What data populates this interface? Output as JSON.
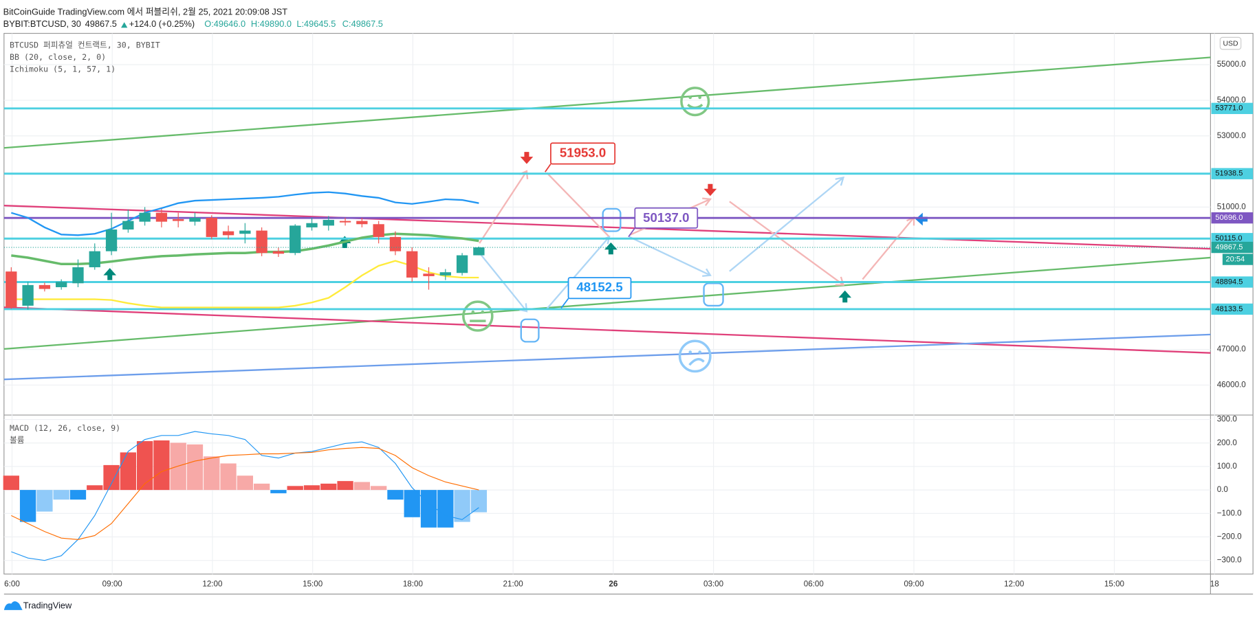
{
  "header": {
    "publish_line": "BitCoinGuide TradingView.com 에서 퍼블리쉬, 2월 25, 2021 20:09:08 JST",
    "symbol": "BYBIT:BTCUSD, 30",
    "price": "49867.5",
    "change": "+124.0 (+0.25%)",
    "open": "O:49646.0",
    "high": "H:49890.0",
    "low": "L:49645.5",
    "close": "C:49867.5"
  },
  "currency_button": "USD",
  "brand": "TradingView",
  "annotations": [
    "51953.0",
    "50137.0",
    "48152.5"
  ],
  "chart_data": [
    {
      "type": "candlestick",
      "title": "BTCUSD 퍼피츄얼 컨트랙트, 30, BYBIT",
      "indicator_labels": [
        "BB (20, close, 2, 0)",
        "Ichimoku (5, 1, 57, 1)"
      ],
      "open": [
        49190,
        48230,
        48810,
        48750,
        48860,
        49310,
        49760,
        50370,
        50590,
        50840,
        50660,
        50590,
        50700,
        50320,
        50250,
        50340,
        49760,
        49710,
        50430,
        50480,
        50610,
        50610,
        50520,
        50160,
        49760,
        49130,
        49080,
        49150,
        49646
      ],
      "high": [
        49310,
        48900,
        48880,
        48970,
        49530,
        49980,
        50840,
        50930,
        51000,
        50950,
        50840,
        50840,
        50770,
        50480,
        50550,
        50430,
        49870,
        50520,
        50700,
        50750,
        50700,
        50700,
        50610,
        50320,
        49870,
        49310,
        49260,
        49710,
        49890
      ],
      "low": [
        48140,
        48120,
        48630,
        48680,
        48750,
        49240,
        49650,
        50280,
        50480,
        50430,
        50430,
        50480,
        50100,
        50100,
        49980,
        49620,
        49600,
        49650,
        50340,
        50340,
        50480,
        50430,
        49980,
        49650,
        48900,
        48680,
        48950,
        49080,
        49645.5
      ],
      "close": [
        48180,
        48810,
        48700,
        48900,
        49310,
        49760,
        50370,
        50610,
        50840,
        50590,
        50610,
        50700,
        50160,
        50210,
        50340,
        49710,
        49690,
        50480,
        50550,
        50640,
        50570,
        50520,
        50160,
        49760,
        49020,
        49060,
        49170,
        49646,
        49867.5
      ],
      "up_color": "#26a69a",
      "down_color": "#ef5350",
      "lines": [
        {
          "color": "#2196f3",
          "values": [
            50840,
            50700,
            50430,
            50230,
            50210,
            50250,
            50390,
            50610,
            50840,
            50970,
            51110,
            51180,
            51200,
            51220,
            51240,
            51260,
            51290,
            51350,
            51400,
            51420,
            51380,
            51310,
            51260,
            51130,
            51090,
            51150,
            51220,
            51200,
            51110
          ]
        },
        {
          "color": "#66bb6a",
          "values": [
            49640,
            49580,
            49490,
            49400,
            49400,
            49420,
            49470,
            49530,
            49580,
            49620,
            49640,
            49670,
            49690,
            49710,
            49710,
            49740,
            49740,
            49760,
            49830,
            49920,
            50030,
            50140,
            50210,
            50250,
            50230,
            50210,
            50160,
            50120,
            50050
          ]
        },
        {
          "color": "#ffeb3b",
          "values": [
            48410,
            48410,
            48410,
            48410,
            48410,
            48410,
            48390,
            48300,
            48230,
            48180,
            48180,
            48180,
            48180,
            48180,
            48180,
            48180,
            48180,
            48230,
            48320,
            48450,
            48750,
            49080,
            49350,
            49490,
            49350,
            49170,
            49060,
            49020,
            49020
          ]
        }
      ],
      "levels": [
        {
          "value": 53771.0,
          "label": "53771.0",
          "color": "#4dd0e1"
        },
        {
          "value": 51938.5,
          "label": "51938.5",
          "color": "#4dd0e1"
        },
        {
          "value": 50696.0,
          "label": "50696.0",
          "color": "#7e57c2"
        },
        {
          "value": 50115.0,
          "label": "50115.0",
          "color": "#4dd0e1"
        },
        {
          "value": 48894.5,
          "label": "48894.5",
          "color": "#4dd0e1"
        },
        {
          "value": 48133.5,
          "label": "48133.5",
          "color": "#4dd0e1"
        }
      ],
      "last_price": {
        "value": 49867.5,
        "label": "49867.5",
        "color": "#26a69a"
      },
      "countdown": "20:54",
      "ylim": [
        45170,
        55880
      ],
      "yticks": [
        {
          "value": 46000,
          "label": "46000.0"
        },
        {
          "value": 47000,
          "label": "47000.0"
        },
        {
          "value": 51000,
          "label": "51000.0"
        },
        {
          "value": 53000,
          "label": "53000.0"
        },
        {
          "value": 54000,
          "label": "54000.0"
        },
        {
          "value": 55000,
          "label": "55000.0"
        }
      ],
      "xtick_labels": [
        "6:00",
        "09:00",
        "12:00",
        "15:00",
        "18:00",
        "21:00",
        "26",
        "03:00",
        "06:00",
        "09:00",
        "12:00",
        "15:00",
        "18"
      ],
      "grid": true
    },
    {
      "type": "bar",
      "title": "MACD (12, 26, close, 9)",
      "subtitle": "볼륨",
      "values": [
        61,
        -136,
        -92,
        -41,
        -41,
        20,
        106,
        160,
        208,
        211,
        201,
        194,
        143,
        113,
        61,
        27,
        -14,
        17,
        20,
        27,
        38,
        34,
        17,
        -41,
        -116,
        -160,
        -160,
        -136,
        -95
      ],
      "lines": [
        {
          "color": "#2196f3",
          "values": [
            -263,
            -290,
            -300,
            -280,
            -211,
            -109,
            27,
            164,
            215,
            232,
            232,
            249,
            239,
            232,
            215,
            147,
            136,
            157,
            164,
            181,
            198,
            205,
            181,
            113,
            10,
            -58,
            -109,
            -126,
            -75
          ]
        },
        {
          "color": "#ff6d00",
          "values": [
            -109,
            -143,
            -177,
            -205,
            -211,
            -194,
            -143,
            -58,
            27,
            78,
            102,
            123,
            136,
            147,
            150,
            154,
            154,
            157,
            160,
            171,
            177,
            181,
            177,
            147,
            95,
            61,
            34,
            17,
            0
          ]
        }
      ],
      "ylim": [
        -358,
        314
      ],
      "yticks": [
        {
          "value": 300,
          "label": "300.0"
        },
        {
          "value": 200,
          "label": "200.0"
        },
        {
          "value": 100,
          "label": "100.0"
        },
        {
          "value": 0,
          "label": "0.0"
        },
        {
          "value": -100,
          "label": "−100.0"
        },
        {
          "value": -200,
          "label": "−200.0"
        },
        {
          "value": -300,
          "label": "−300.0"
        }
      ]
    }
  ]
}
